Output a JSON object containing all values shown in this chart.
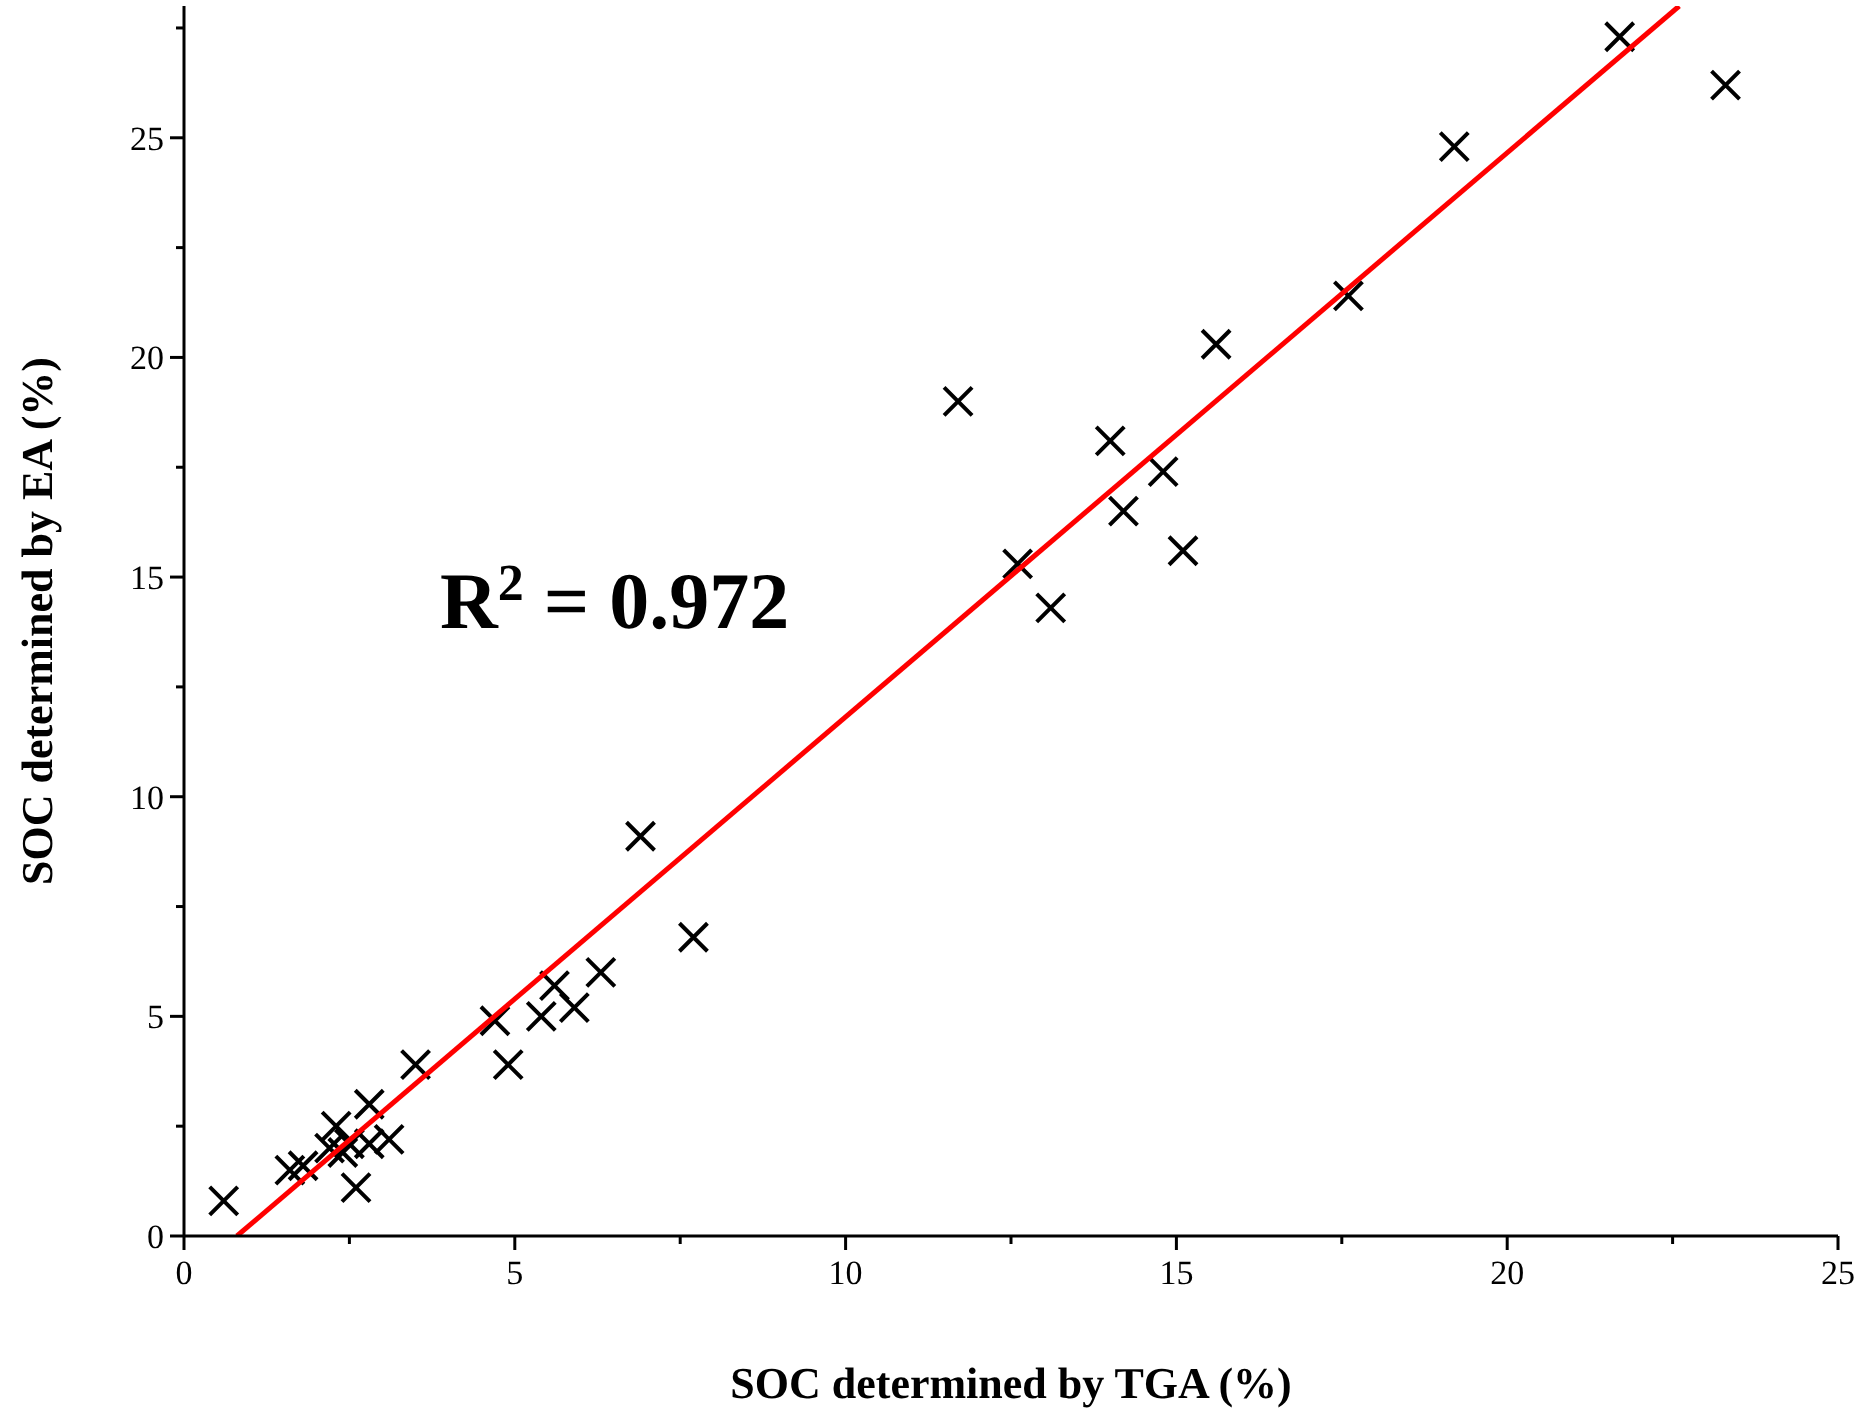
{
  "chart_data": {
    "type": "scatter",
    "xlabel": "SOC determined by TGA (%)",
    "ylabel": "SOC determined by EA (%)",
    "annotations": [
      "R$^{2}$ = 0.972"
    ],
    "xlim": [
      0,
      25
    ],
    "ylim": [
      0,
      28
    ],
    "xticks": [
      0,
      {
        "value": 2.5,
        "label": null
      },
      5,
      {
        "value": 7.5,
        "label": null
      },
      10,
      {
        "value": 12.5,
        "label": null
      },
      15,
      {
        "value": 17.5,
        "label": null
      },
      20,
      {
        "value": 22.5,
        "label": null
      },
      25
    ],
    "yticks": [
      0,
      {
        "value": 2.5,
        "label": null
      },
      5,
      {
        "value": 7.5,
        "label": null
      },
      10,
      {
        "value": 12.5,
        "label": null
      },
      15,
      {
        "value": 17.5,
        "label": null
      },
      20,
      {
        "value": 22.5,
        "label": null
      },
      25,
      {
        "value": 27.5,
        "label": null
      }
    ],
    "grid": false,
    "series": [
      {
        "marker": "cross",
        "color": "#000000",
        "x": [
          0.6,
          1.6,
          1.8,
          2.3,
          2.2,
          2.4,
          2.5,
          2.6,
          2.8,
          2.8,
          3.1,
          3.5,
          4.7,
          4.9,
          5.4,
          5.6,
          5.9,
          6.3,
          6.9,
          7.7,
          11.7,
          12.6,
          13.1,
          14.0,
          14.2,
          14.8,
          15.1,
          15.6,
          17.6,
          19.2,
          21.7,
          23.3
        ],
        "values": [
          0.8,
          1.5,
          1.6,
          2.5,
          2.0,
          1.9,
          2.1,
          1.1,
          3.0,
          2.1,
          2.2,
          3.9,
          4.9,
          3.9,
          5.0,
          5.7,
          5.2,
          6.0,
          9.1,
          6.8,
          19.0,
          15.3,
          14.3,
          18.1,
          16.5,
          17.4,
          15.6,
          20.3,
          21.4,
          24.8,
          27.3,
          26.2
        ]
      },
      {
        "type": "line",
        "marker": "none",
        "line_style": "solid",
        "color": "#ff0000",
        "x": [
          0.8,
          22.6
        ],
        "values": [
          0,
          28
        ]
      }
    ]
  }
}
